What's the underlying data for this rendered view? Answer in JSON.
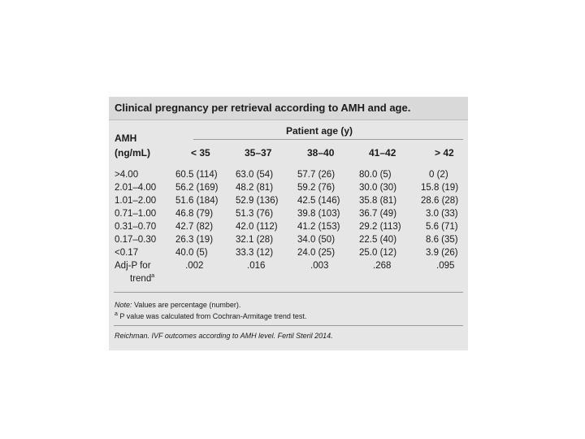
{
  "table": {
    "title": "Clinical pregnancy per retrieval according to AMH and age.",
    "row_header_line1": "AMH",
    "row_header_line2": "(ng/mL)",
    "group_header": "Patient age (y)",
    "columns": [
      "< 35",
      "35–37",
      "38–40",
      "41–42",
      "> 42"
    ],
    "rows": [
      {
        "label": ">4.00",
        "cells": [
          "60.5 (114)",
          "63.0 (54)",
          "57.7 (26)",
          "80.0 (5)",
          "0 (2)"
        ]
      },
      {
        "label": "2.01–4.00",
        "cells": [
          "56.2 (169)",
          "48.2 (81)",
          "59.2 (76)",
          "30.0 (30)",
          "15.8 (19)"
        ]
      },
      {
        "label": "1.01–2.00",
        "cells": [
          "51.6 (184)",
          "52.9 (136)",
          "42.5 (146)",
          "35.8 (81)",
          "28.6 (28)"
        ]
      },
      {
        "label": "0.71–1.00",
        "cells": [
          "46.8 (79)",
          "51.3 (76)",
          "39.8 (103)",
          "36.7 (49)",
          "3.0 (33)"
        ]
      },
      {
        "label": "0.31–0.70",
        "cells": [
          "42.7 (82)",
          "42.0 (112)",
          "41.2 (153)",
          "29.2 (113)",
          "5.6 (71)"
        ]
      },
      {
        "label": "0.17–0.30",
        "cells": [
          "26.3 (19)",
          "32.1 (28)",
          "34.0 (50)",
          "22.5 (40)",
          "8.6 (35)"
        ]
      },
      {
        "label": "<0.17",
        "cells": [
          "40.0 (5)",
          "33.3 (12)",
          "24.0 (25)",
          "25.0 (12)",
          "3.9 (26)"
        ]
      }
    ],
    "trend_row": {
      "label_line1": "Adj-P for",
      "label_line2": "trend",
      "label_sup": "a",
      "cells": [
        ".002",
        ".016",
        ".003",
        ".268",
        ".095"
      ]
    },
    "note_prefix": "Note:",
    "note_text": " Values are percentage (number).",
    "footnote_marker": "a",
    "footnote_text": " P value was calculated from Cochran-Armitage trend test.",
    "citation": "Reichman. IVF outcomes according to AMH level. Fertil Steril 2014."
  }
}
